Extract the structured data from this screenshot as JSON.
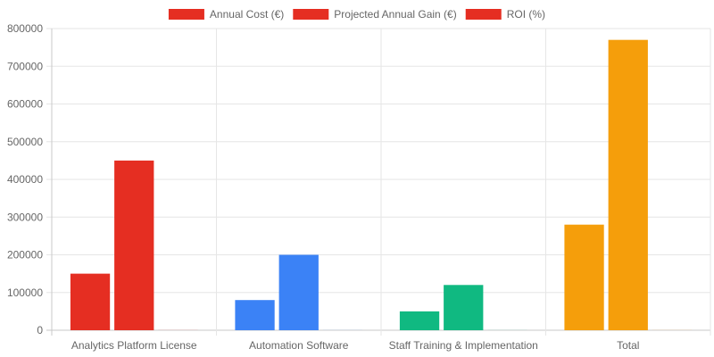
{
  "chart_data": {
    "type": "bar",
    "title": "",
    "xlabel": "",
    "ylabel": "",
    "categories": [
      "Analytics Platform License",
      "Automation Software",
      "Staff Training & Implementation",
      "Total"
    ],
    "series": [
      {
        "name": "Annual Cost (€)",
        "values": [
          150000,
          80000,
          50000,
          280000
        ]
      },
      {
        "name": "Projected Annual Gain (€)",
        "values": [
          450000,
          200000,
          120000,
          770000
        ]
      },
      {
        "name": "ROI (%)",
        "values": [
          200,
          150,
          140,
          175
        ]
      }
    ],
    "category_colors": [
      "#e52e22",
      "#3b82f6",
      "#10b981",
      "#f59e0b"
    ],
    "legend_color": "#e52e22",
    "ylim": [
      0,
      800000
    ],
    "yticks": [
      0,
      100000,
      200000,
      300000,
      400000,
      500000,
      600000,
      700000,
      800000
    ],
    "grid": true,
    "legend_position": "top"
  }
}
